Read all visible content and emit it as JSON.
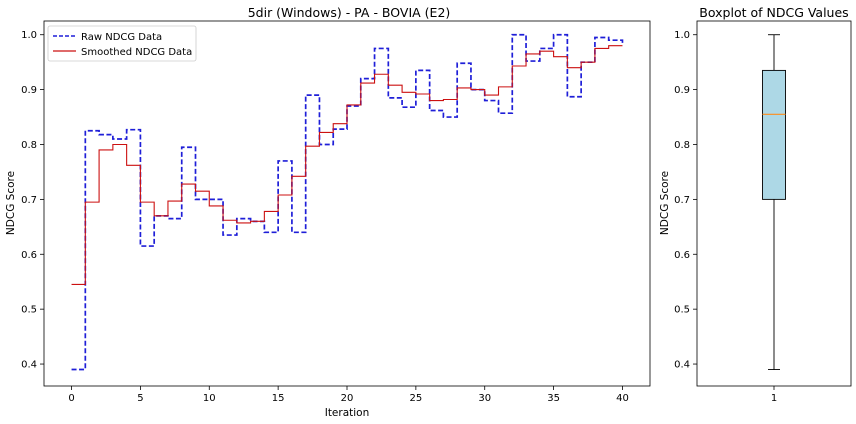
{
  "chart_data": [
    {
      "type": "line",
      "title": "5dir (Windows) - PA - BOVIA (E2)",
      "xlabel": "Iteration",
      "ylabel": "NDCG Score",
      "xlim": [
        -2,
        42
      ],
      "ylim": [
        0.36,
        1.025
      ],
      "x_ticks": [
        0,
        5,
        10,
        15,
        20,
        25,
        30,
        35,
        40
      ],
      "y_ticks": [
        0.4,
        0.5,
        0.6,
        0.7,
        0.8,
        0.9,
        1.0
      ],
      "y_tick_labels": [
        "0.4",
        "0.5",
        "0.6",
        "0.7",
        "0.8",
        "0.9",
        "1.0"
      ],
      "grid": false,
      "legend_position": "top-left",
      "x": [
        0,
        1,
        2,
        3,
        4,
        5,
        6,
        7,
        8,
        9,
        10,
        11,
        12,
        13,
        14,
        15,
        16,
        17,
        18,
        19,
        20,
        21,
        22,
        23,
        24,
        25,
        26,
        27,
        28,
        29,
        30,
        31,
        32,
        33,
        34,
        35,
        36,
        37,
        38,
        39,
        40
      ],
      "series": [
        {
          "name": "Raw NDCG Data",
          "color": "#1f1fd8",
          "style": "dashed-step",
          "values": [
            0.39,
            0.825,
            0.818,
            0.81,
            0.827,
            0.615,
            0.67,
            0.665,
            0.795,
            0.7,
            0.7,
            0.635,
            0.665,
            0.66,
            0.64,
            0.77,
            0.64,
            0.89,
            0.8,
            0.828,
            0.87,
            0.92,
            0.975,
            0.885,
            0.868,
            0.935,
            0.862,
            0.85,
            0.948,
            0.9,
            0.88,
            0.857,
            1.0,
            0.952,
            0.975,
            1.0,
            0.887,
            0.95,
            0.995,
            0.99,
            0.985
          ]
        },
        {
          "name": "Smoothed NDCG Data",
          "color": "#cc1111",
          "style": "solid-step",
          "values": [
            0.545,
            0.695,
            0.79,
            0.8,
            0.762,
            0.695,
            0.67,
            0.697,
            0.728,
            0.715,
            0.688,
            0.662,
            0.657,
            0.66,
            0.678,
            0.708,
            0.742,
            0.797,
            0.822,
            0.838,
            0.872,
            0.912,
            0.928,
            0.908,
            0.895,
            0.892,
            0.88,
            0.882,
            0.903,
            0.9,
            0.89,
            0.905,
            0.943,
            0.965,
            0.97,
            0.96,
            0.94,
            0.95,
            0.975,
            0.98,
            0.98
          ]
        }
      ]
    },
    {
      "type": "boxplot",
      "title": "Boxplot of NDCG Values",
      "xlabel": "",
      "ylabel": "NDCG Score",
      "categories": [
        "1"
      ],
      "ylim": [
        0.36,
        1.025
      ],
      "y_ticks": [
        0.4,
        0.5,
        0.6,
        0.7,
        0.8,
        0.9,
        1.0
      ],
      "y_tick_labels": [
        "0.4",
        "0.5",
        "0.6",
        "0.7",
        "0.8",
        "0.9",
        "1.0"
      ],
      "box": {
        "whisker_low": 0.39,
        "q1": 0.7,
        "median": 0.855,
        "q3": 0.935,
        "whisker_high": 1.0
      },
      "box_color": "#add8e6",
      "median_color": "#ff8c1a"
    }
  ]
}
